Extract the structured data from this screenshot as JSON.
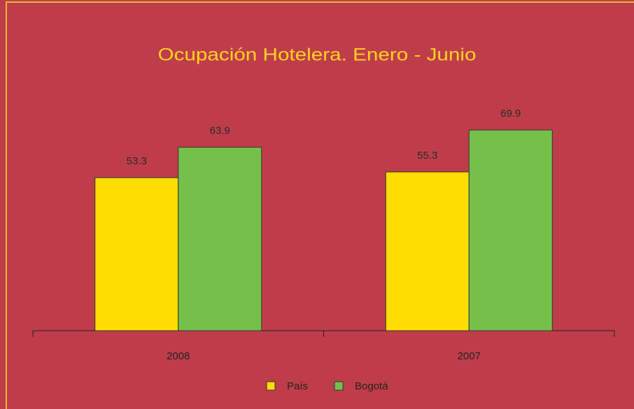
{
  "chart_data": {
    "type": "bar",
    "title": "Ocupación Hotelera. Enero - Junio",
    "categories": [
      "2008",
      "2007"
    ],
    "series": [
      {
        "name": "País",
        "color": "#ffdd00",
        "values": [
          53.3,
          55.3
        ]
      },
      {
        "name": "Bogotá",
        "color": "#76c04a",
        "values": [
          63.9,
          69.9
        ]
      }
    ]
  }
}
